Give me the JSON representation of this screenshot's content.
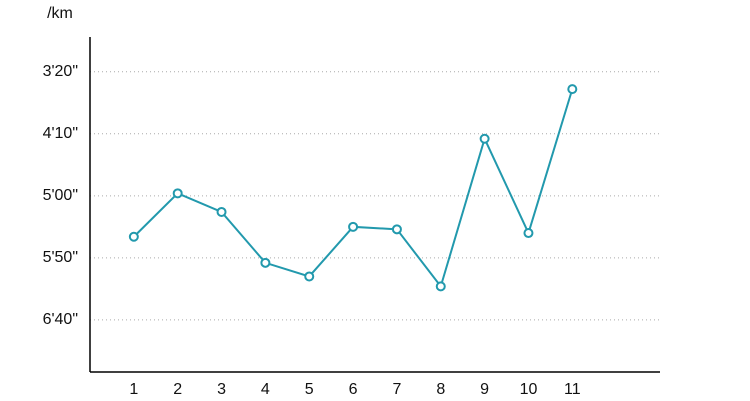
{
  "chart_data": {
    "type": "line",
    "y_label": "/km",
    "x": [
      1,
      2,
      3,
      4,
      5,
      6,
      7,
      8,
      9,
      10,
      11
    ],
    "xlim": [
      0,
      13
    ],
    "xticks": [
      1,
      2,
      3,
      4,
      5,
      6,
      7,
      8,
      9,
      10,
      11
    ],
    "series": [
      {
        "color": "#2299ad",
        "values": [
          333,
          298,
          313,
          354,
          365,
          325,
          327,
          373,
          254,
          330,
          214
        ]
      }
    ],
    "ylim": [
      172,
      442
    ],
    "y_inverted": true,
    "yticks": [
      {
        "value": 200,
        "label": "3'20\""
      },
      {
        "value": 250,
        "label": "4'10\""
      },
      {
        "value": 300,
        "label": "5'00\""
      },
      {
        "value": 350,
        "label": "5'50\""
      },
      {
        "value": 400,
        "label": "6'40\""
      }
    ],
    "grid": true
  }
}
